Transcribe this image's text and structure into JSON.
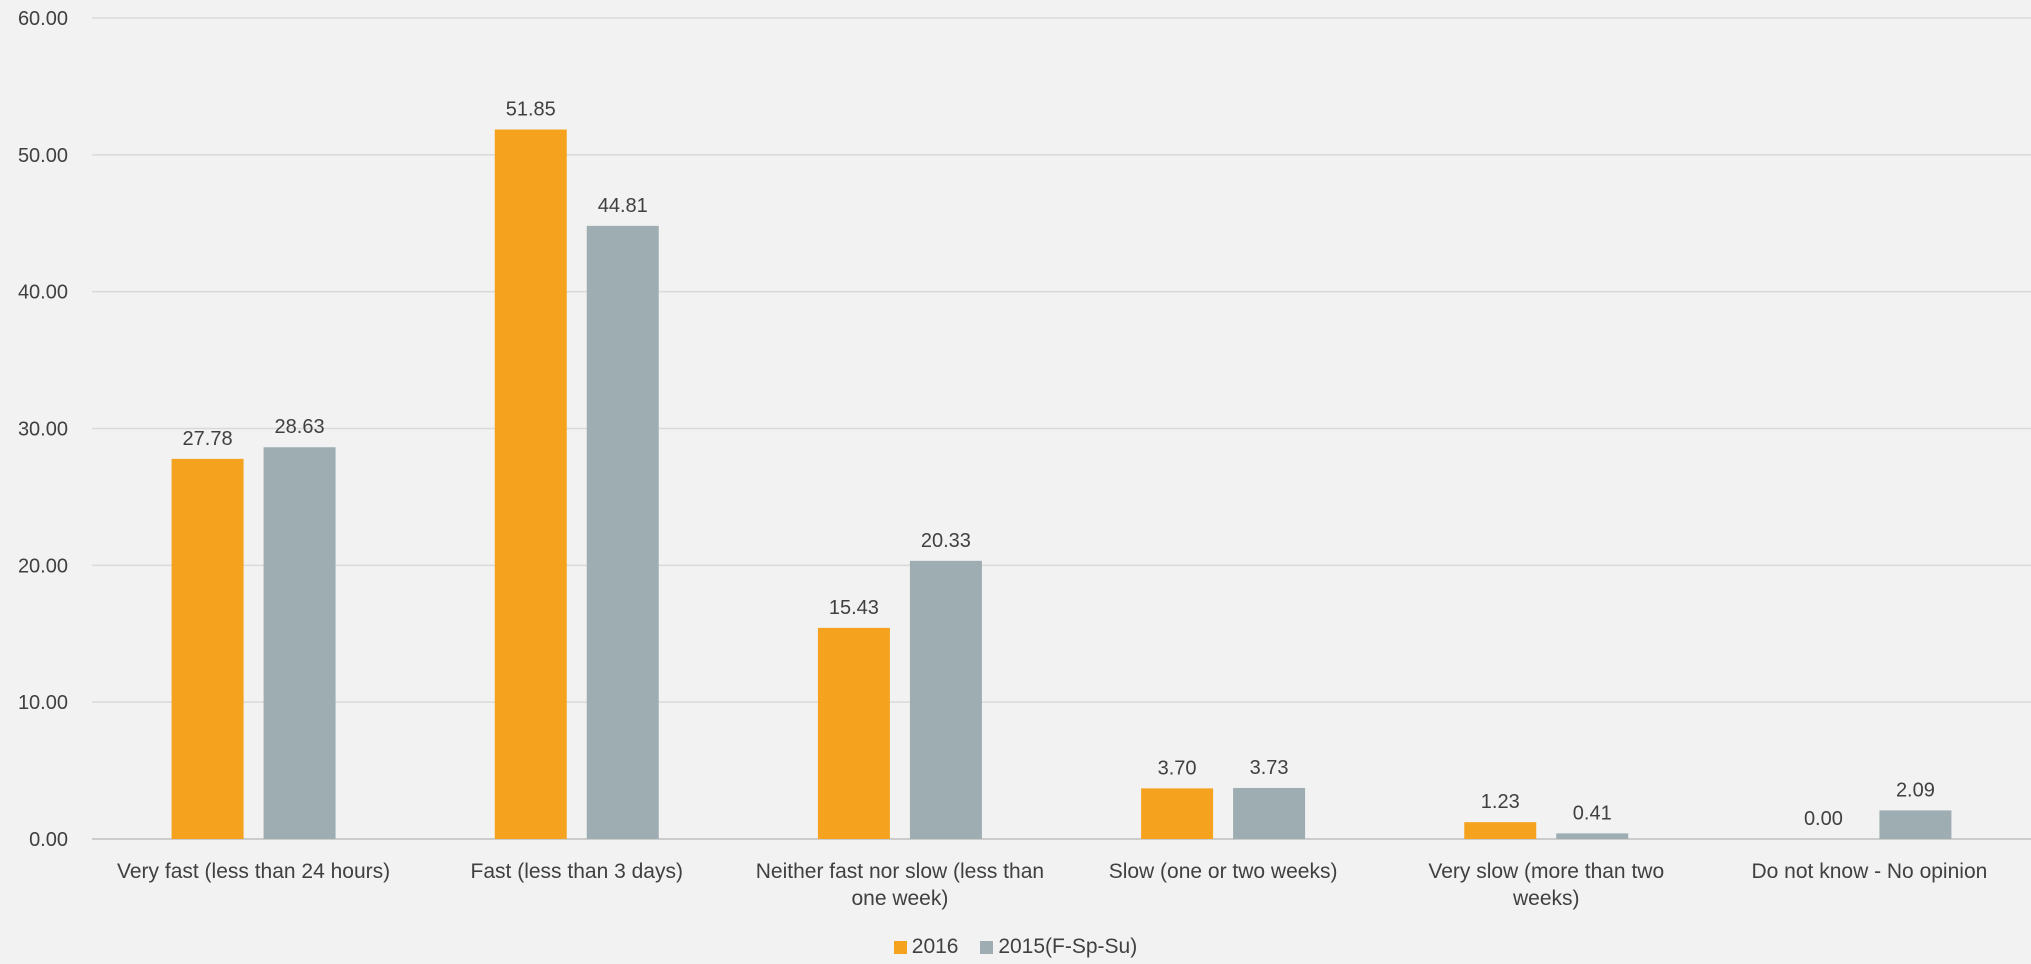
{
  "chart_data": {
    "type": "bar",
    "categories": [
      [
        "Very fast (less than 24 hours)"
      ],
      [
        "Fast (less than 3 days)"
      ],
      [
        "Neither fast nor slow (less than",
        "one week)"
      ],
      [
        "Slow (one or two weeks)"
      ],
      [
        "Very slow (more than two",
        "weeks)"
      ],
      [
        "Do not know - No opinion"
      ]
    ],
    "series": [
      {
        "name": "2016",
        "color": "#f5a31f",
        "values": [
          27.78,
          51.85,
          15.43,
          3.7,
          1.23,
          0.0
        ],
        "labels": [
          "27.78",
          "51.85",
          "15.43",
          "3.70",
          "1.23",
          "0.00"
        ]
      },
      {
        "name": "2015(F-Sp-Su)",
        "color": "#9eadb2",
        "values": [
          28.63,
          44.81,
          20.33,
          3.73,
          0.41,
          2.09
        ],
        "labels": [
          "28.63",
          "44.81",
          "20.33",
          "3.73",
          "0.41",
          "2.09"
        ]
      }
    ],
    "ylim": [
      0,
      60
    ],
    "yticks": [
      "0.00",
      "10.00",
      "20.00",
      "30.00",
      "40.00",
      "50.00",
      "60.00"
    ],
    "grid": true,
    "legend_position": "bottom"
  }
}
